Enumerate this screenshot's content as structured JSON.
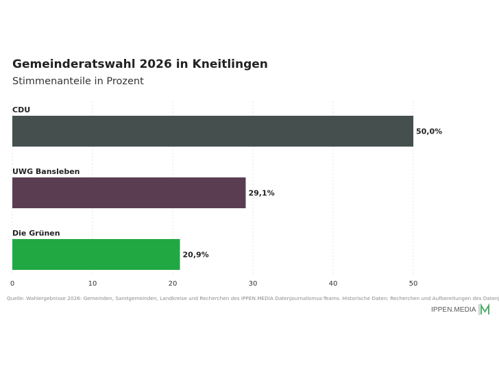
{
  "header": {
    "title": "Gemeinderatswahl 2026 in Kneitlingen",
    "subtitle": "Stimmenanteile in Prozent"
  },
  "chart_data": {
    "type": "bar",
    "orientation": "horizontal",
    "categories": [
      "CDU",
      "UWG Bansleben",
      "Die Grünen"
    ],
    "values": [
      50.0,
      29.1,
      20.9
    ],
    "value_labels": [
      "50,0%",
      "29,1%",
      "20,9%"
    ],
    "colors": [
      "#444f4e",
      "#5b3d52",
      "#21a843"
    ],
    "xlim": [
      0,
      50
    ],
    "xticks": [
      "0",
      "10",
      "20",
      "30",
      "40",
      "50"
    ],
    "grid": true
  },
  "footer": {
    "source": "Quelle: Wahlergebnisse 2026: Gemeinden, Samtgemeinden, Landkreise und Recherchen des IPPEN.MEDIA Datenjournalismus-Teams. Historische Daten: Recherchen und Aufbereitungen des Datenjournalismus-Teams",
    "brand": "IPPEN.MEDIA"
  }
}
